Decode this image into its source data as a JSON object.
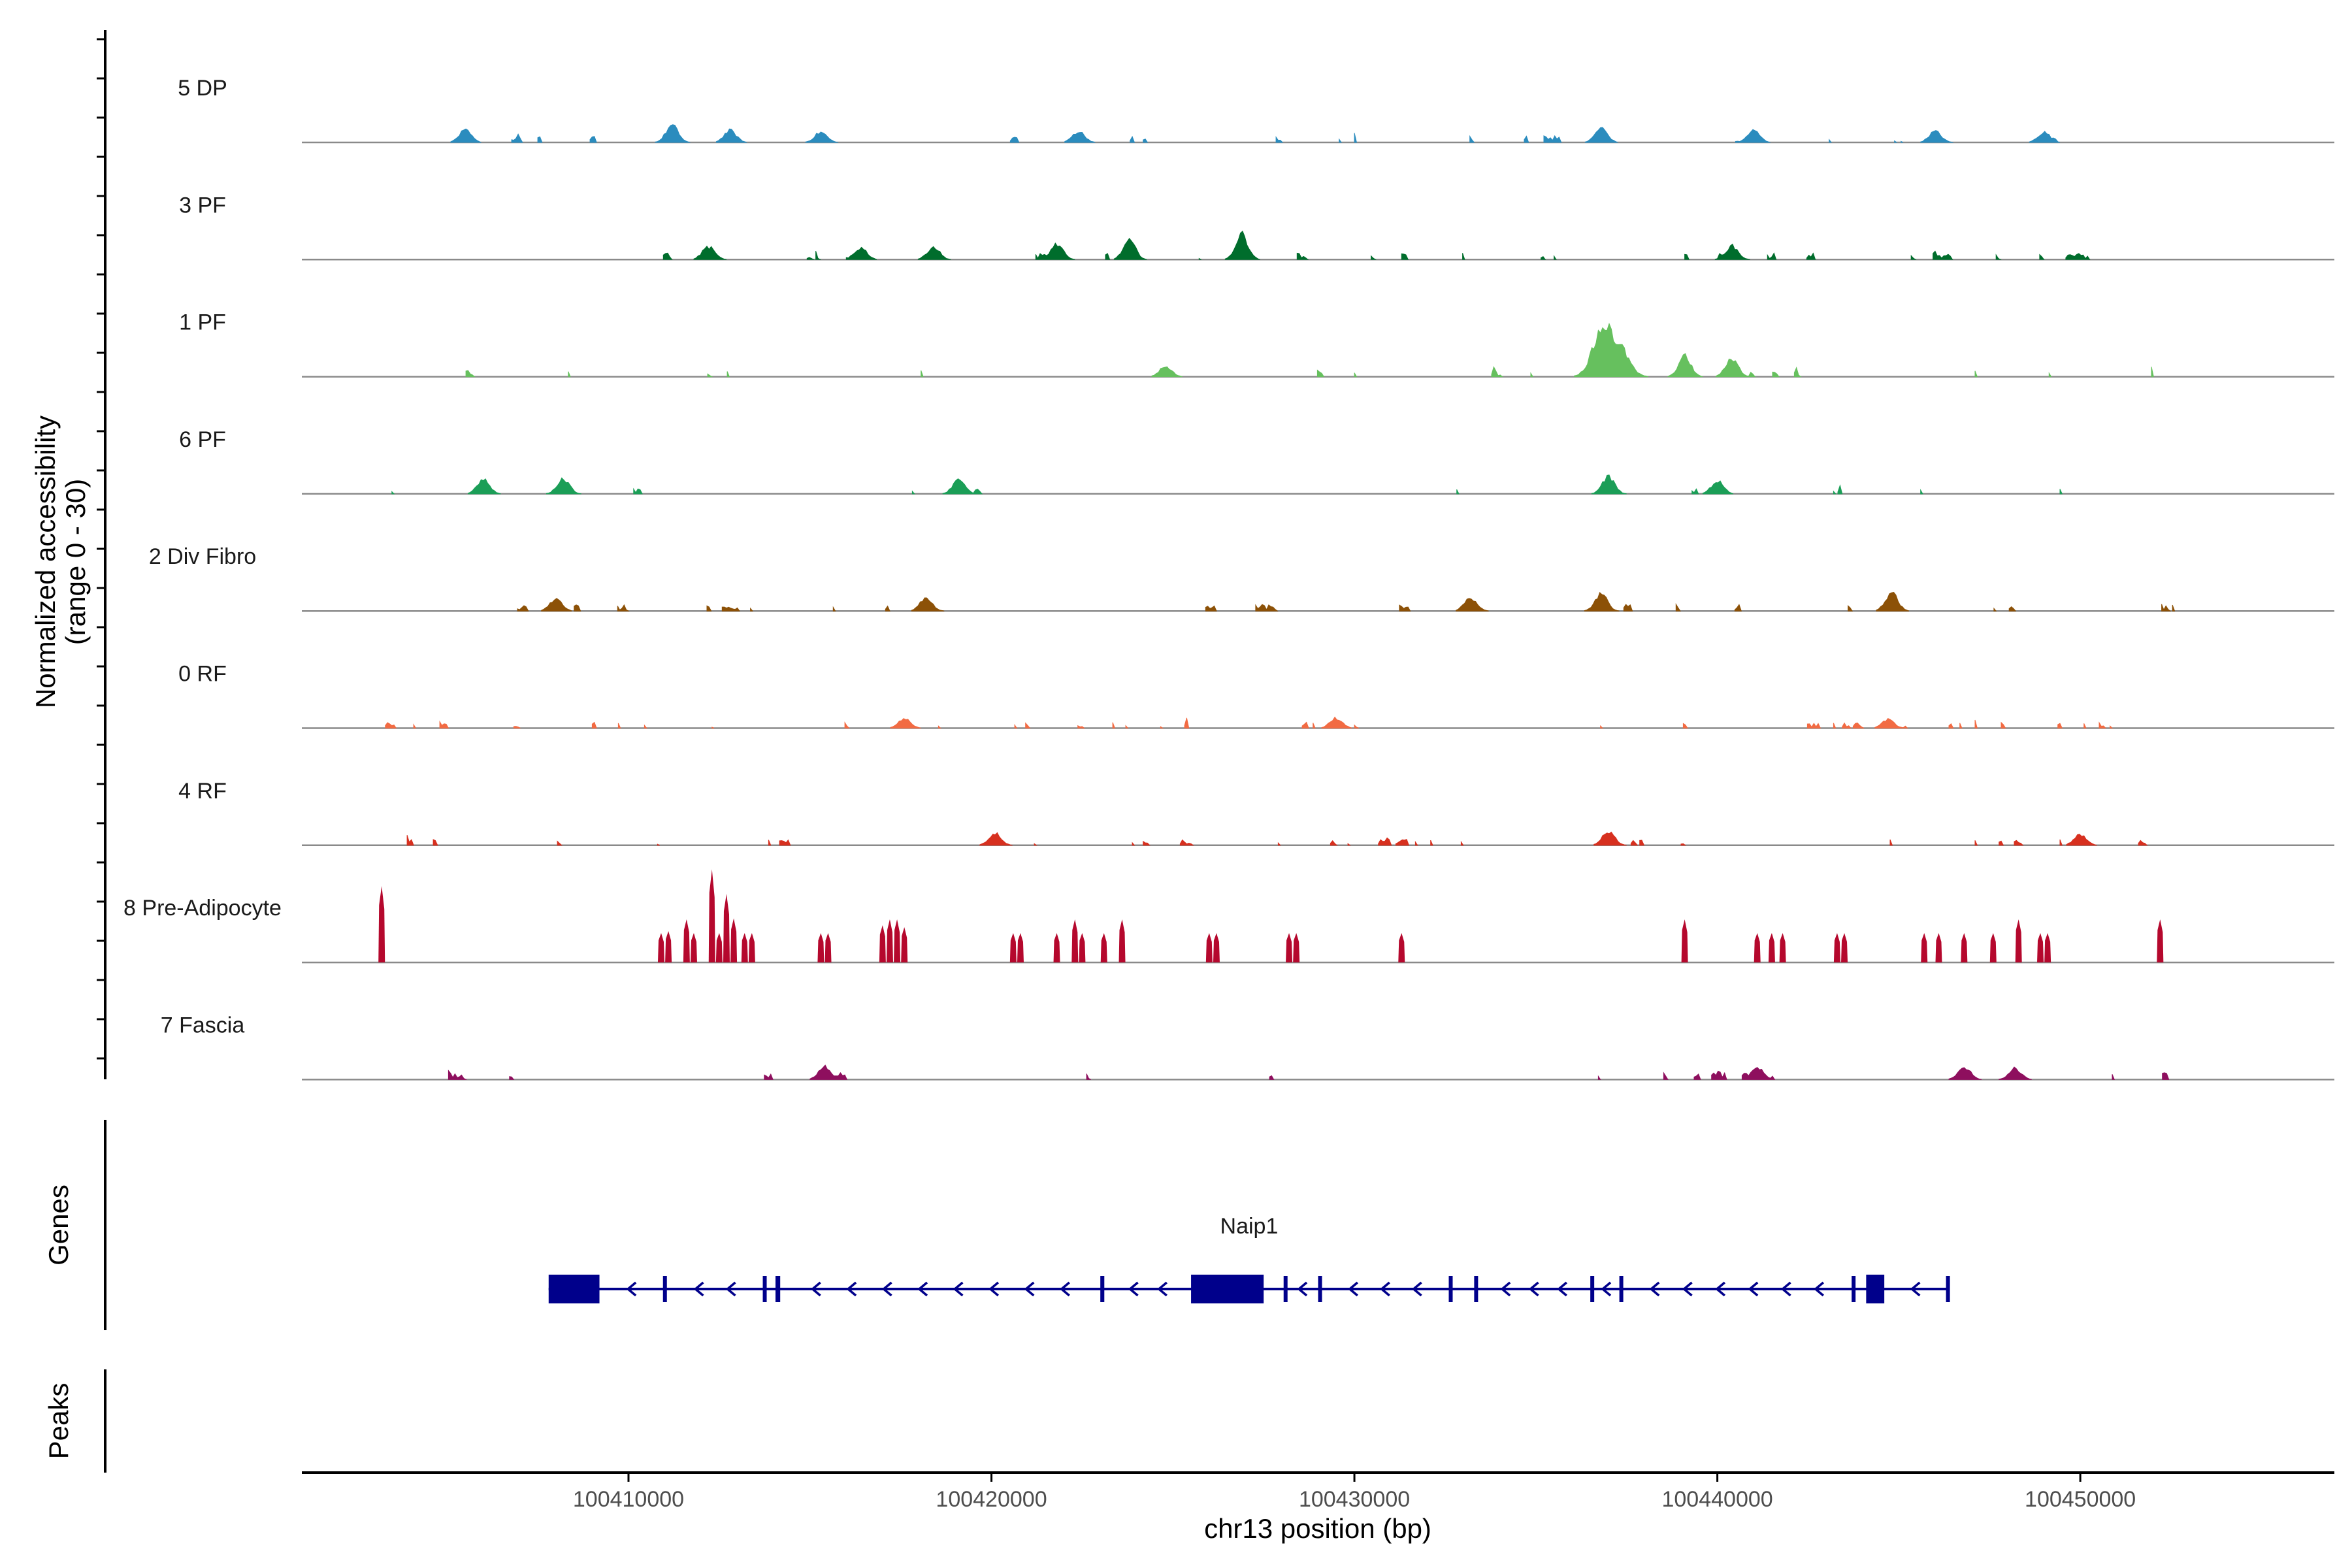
{
  "chart_data": {
    "type": "coverage",
    "ylabel": "Normalized accessibility",
    "ylabel_range": "(range 0 - 30)",
    "y_range": [
      0,
      30
    ],
    "xlabel": "chr13 position (bp)",
    "x_range": [
      100401000,
      100457000
    ],
    "x_ticks": [
      100410000,
      100420000,
      100430000,
      100440000,
      100450000
    ],
    "x_tick_labels": [
      "100410000",
      "100420000",
      "100430000",
      "100440000",
      "100450000"
    ],
    "tracks": [
      {
        "name": "5 DP",
        "color": "#2b8cbe",
        "mode": "moderate",
        "density": 0.06,
        "start": 100403000,
        "end": 100451200,
        "peaks": [
          {
            "pos": 100405500,
            "h": 0.14
          },
          {
            "pos": 100411200,
            "h": 0.2
          },
          {
            "pos": 100412800,
            "h": 0.14
          },
          {
            "pos": 100415300,
            "h": 0.12
          },
          {
            "pos": 100422400,
            "h": 0.13
          },
          {
            "pos": 100436800,
            "h": 0.17
          },
          {
            "pos": 100441000,
            "h": 0.14
          },
          {
            "pos": 100446000,
            "h": 0.13
          },
          {
            "pos": 100449000,
            "h": 0.12
          }
        ]
      },
      {
        "name": "3 PF",
        "color": "#006d2c",
        "mode": "moderate",
        "density": 0.08,
        "start": 100404600,
        "end": 100453000,
        "peaks": [
          {
            "pos": 100412200,
            "h": 0.15
          },
          {
            "pos": 100416400,
            "h": 0.14
          },
          {
            "pos": 100418400,
            "h": 0.15
          },
          {
            "pos": 100421800,
            "h": 0.18
          },
          {
            "pos": 100423800,
            "h": 0.22
          },
          {
            "pos": 100426900,
            "h": 0.3
          },
          {
            "pos": 100440400,
            "h": 0.16
          }
        ]
      },
      {
        "name": "1 PF",
        "color": "#66c05e",
        "mode": "moderate",
        "density": 0.05,
        "start": 100403000,
        "end": 100453300,
        "peaks": [
          {
            "pos": 100436900,
            "h": 0.62
          },
          {
            "pos": 100437200,
            "h": 0.42
          },
          {
            "pos": 100439100,
            "h": 0.24
          },
          {
            "pos": 100440400,
            "h": 0.22
          },
          {
            "pos": 100424800,
            "h": 0.12
          }
        ]
      },
      {
        "name": "6 PF",
        "color": "#1b9e57",
        "mode": "moderate",
        "density": 0.05,
        "start": 100403000,
        "end": 100450200,
        "peaks": [
          {
            "pos": 100406000,
            "h": 0.18
          },
          {
            "pos": 100408200,
            "h": 0.18
          },
          {
            "pos": 100419100,
            "h": 0.16
          },
          {
            "pos": 100437000,
            "h": 0.2
          },
          {
            "pos": 100440000,
            "h": 0.15
          }
        ]
      },
      {
        "name": "2 Div Fibro",
        "color": "#8c5107",
        "mode": "moderate",
        "density": 0.07,
        "start": 100403400,
        "end": 100452600,
        "peaks": [
          {
            "pos": 100408000,
            "h": 0.14
          },
          {
            "pos": 100418200,
            "h": 0.15
          },
          {
            "pos": 100433200,
            "h": 0.16
          },
          {
            "pos": 100436800,
            "h": 0.2
          },
          {
            "pos": 100444800,
            "h": 0.22
          }
        ]
      },
      {
        "name": "0 RF",
        "color": "#f26b43",
        "mode": "broad",
        "density": 0.12,
        "start": 100403000,
        "end": 100451100,
        "peaks": [
          {
            "pos": 100429500,
            "h": 0.12
          },
          {
            "pos": 100417600,
            "h": 0.11
          },
          {
            "pos": 100444700,
            "h": 0.1
          }
        ]
      },
      {
        "name": "4 RF",
        "color": "#d7301f",
        "mode": "broad",
        "density": 0.1,
        "start": 100403000,
        "end": 100453300,
        "peaks": [
          {
            "pos": 100420100,
            "h": 0.14
          },
          {
            "pos": 100437000,
            "h": 0.16
          },
          {
            "pos": 100450000,
            "h": 0.13
          }
        ]
      },
      {
        "name": "8 Pre-Adipocyte",
        "color": "#b5082d",
        "mode": "spikes",
        "start": 100403000,
        "end": 100452500,
        "spikes": [
          {
            "pos": 100403200,
            "h": 0.78
          },
          {
            "pos": 100410900,
            "h": 0.3
          },
          {
            "pos": 100411100,
            "h": 0.32
          },
          {
            "pos": 100411600,
            "h": 0.44
          },
          {
            "pos": 100411800,
            "h": 0.3
          },
          {
            "pos": 100412300,
            "h": 0.95
          },
          {
            "pos": 100412500,
            "h": 0.3
          },
          {
            "pos": 100412700,
            "h": 0.7
          },
          {
            "pos": 100412900,
            "h": 0.45
          },
          {
            "pos": 100413200,
            "h": 0.3
          },
          {
            "pos": 100413400,
            "h": 0.3
          },
          {
            "pos": 100415300,
            "h": 0.3
          },
          {
            "pos": 100415500,
            "h": 0.3
          },
          {
            "pos": 100417000,
            "h": 0.38
          },
          {
            "pos": 100417200,
            "h": 0.44
          },
          {
            "pos": 100417400,
            "h": 0.44
          },
          {
            "pos": 100417600,
            "h": 0.36
          },
          {
            "pos": 100420600,
            "h": 0.3
          },
          {
            "pos": 100420800,
            "h": 0.3
          },
          {
            "pos": 100421800,
            "h": 0.3
          },
          {
            "pos": 100422300,
            "h": 0.44
          },
          {
            "pos": 100422500,
            "h": 0.3
          },
          {
            "pos": 100423100,
            "h": 0.3
          },
          {
            "pos": 100423600,
            "h": 0.44
          },
          {
            "pos": 100426000,
            "h": 0.3
          },
          {
            "pos": 100426200,
            "h": 0.3
          },
          {
            "pos": 100428200,
            "h": 0.3
          },
          {
            "pos": 100428400,
            "h": 0.3
          },
          {
            "pos": 100431300,
            "h": 0.3
          },
          {
            "pos": 100439100,
            "h": 0.44
          },
          {
            "pos": 100441100,
            "h": 0.3
          },
          {
            "pos": 100441500,
            "h": 0.3
          },
          {
            "pos": 100441800,
            "h": 0.3
          },
          {
            "pos": 100443300,
            "h": 0.3
          },
          {
            "pos": 100443500,
            "h": 0.3
          },
          {
            "pos": 100445700,
            "h": 0.3
          },
          {
            "pos": 100446100,
            "h": 0.3
          },
          {
            "pos": 100446800,
            "h": 0.3
          },
          {
            "pos": 100447600,
            "h": 0.3
          },
          {
            "pos": 100448300,
            "h": 0.44
          },
          {
            "pos": 100448900,
            "h": 0.3
          },
          {
            "pos": 100449100,
            "h": 0.3
          },
          {
            "pos": 100452200,
            "h": 0.44
          }
        ]
      },
      {
        "name": "7 Fascia",
        "color": "#8e0f5e",
        "mode": "moderate",
        "density": 0.05,
        "start": 100403000,
        "end": 100452800,
        "peaks": [
          {
            "pos": 100415400,
            "h": 0.15
          },
          {
            "pos": 100441100,
            "h": 0.14
          },
          {
            "pos": 100446800,
            "h": 0.15
          },
          {
            "pos": 100448200,
            "h": 0.13
          }
        ]
      }
    ],
    "gene": {
      "name": "Naip1",
      "color": "#00008b",
      "strand": "-",
      "start": 100407800,
      "end": 100446400,
      "exons": [
        {
          "start": 100407800,
          "end": 100409200
        },
        {
          "start": 100410950,
          "end": 100411050
        },
        {
          "start": 100413700,
          "end": 100413780
        },
        {
          "start": 100414050,
          "end": 100414180
        },
        {
          "start": 100423000,
          "end": 100423110
        },
        {
          "start": 100425500,
          "end": 100427500
        },
        {
          "start": 100428050,
          "end": 100428120
        },
        {
          "start": 100429000,
          "end": 100429080
        },
        {
          "start": 100432600,
          "end": 100432680
        },
        {
          "start": 100433300,
          "end": 100433380
        },
        {
          "start": 100436500,
          "end": 100436560
        },
        {
          "start": 100437300,
          "end": 100437360
        },
        {
          "start": 100443700,
          "end": 100443780
        },
        {
          "start": 100444100,
          "end": 100444600
        },
        {
          "start": 100446300,
          "end": 100446400
        }
      ]
    },
    "panel_labels": {
      "genes": "Genes",
      "peaks": "Peaks"
    }
  }
}
